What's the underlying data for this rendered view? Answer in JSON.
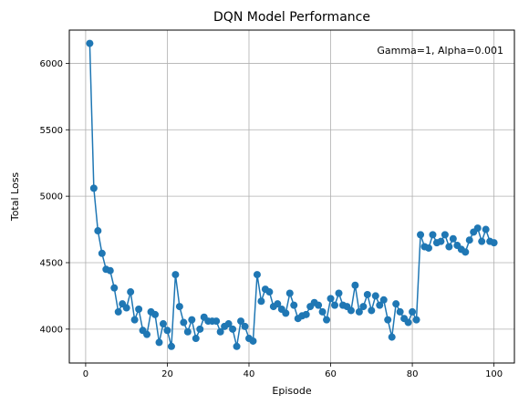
{
  "chart_data": {
    "type": "line",
    "title": "DQN Model Performance",
    "xlabel": "Episode",
    "ylabel": "Total Loss",
    "annotation": "Gamma=1, Alpha=0.001",
    "xlim": [
      -4,
      105
    ],
    "ylim": [
      3745,
      6250
    ],
    "xticks": [
      0,
      20,
      40,
      60,
      80,
      100
    ],
    "yticks": [
      4000,
      4500,
      5000,
      5500,
      6000
    ],
    "grid": true,
    "marker": "circle",
    "series": [
      {
        "color": "#1f77b4",
        "x": [
          1,
          2,
          3,
          4,
          5,
          6,
          7,
          8,
          9,
          10,
          11,
          12,
          13,
          14,
          15,
          16,
          17,
          18,
          19,
          20,
          21,
          22,
          23,
          24,
          25,
          26,
          27,
          28,
          29,
          30,
          31,
          32,
          33,
          34,
          35,
          36,
          37,
          38,
          39,
          40,
          41,
          42,
          43,
          44,
          45,
          46,
          47,
          48,
          49,
          50,
          51,
          52,
          53,
          54,
          55,
          56,
          57,
          58,
          59,
          60,
          61,
          62,
          63,
          64,
          65,
          66,
          67,
          68,
          69,
          70,
          71,
          72,
          73,
          74,
          75,
          76,
          77,
          78,
          79,
          80,
          81,
          82,
          83,
          84,
          85,
          86,
          87,
          88,
          89,
          90,
          91,
          92,
          93,
          94,
          95,
          96,
          97,
          98,
          99,
          100
        ],
        "y": [
          6150,
          5060,
          4740,
          4570,
          4450,
          4440,
          4310,
          4130,
          4190,
          4160,
          4280,
          4070,
          4150,
          3990,
          3960,
          4130,
          4110,
          3900,
          4040,
          3990,
          3870,
          4410,
          4170,
          4050,
          3980,
          4070,
          3930,
          4000,
          4090,
          4060,
          4060,
          4060,
          3980,
          4020,
          4040,
          4000,
          3870,
          4060,
          4020,
          3930,
          3910,
          4410,
          4210,
          4300,
          4280,
          4170,
          4190,
          4150,
          4120,
          4270,
          4180,
          4080,
          4100,
          4110,
          4170,
          4200,
          4180,
          4130,
          4070,
          4230,
          4180,
          4270,
          4180,
          4170,
          4140,
          4330,
          4130,
          4170,
          4260,
          4140,
          4250,
          4180,
          4220,
          4070,
          3940,
          4190,
          4130,
          4080,
          4050,
          4130,
          4070,
          4710,
          4620,
          4610,
          4710,
          4650,
          4660,
          4710,
          4620,
          4680,
          4630,
          4600,
          4580,
          4670,
          4730,
          4760,
          4660,
          4750,
          4660,
          4650
        ]
      }
    ]
  }
}
